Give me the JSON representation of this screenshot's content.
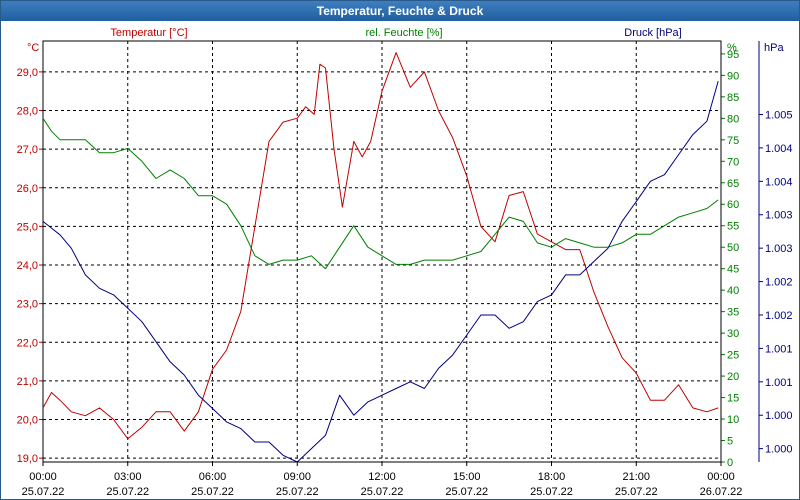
{
  "chart_data": {
    "type": "line",
    "title": "Temperatur, Feuchte & Druck",
    "temp_unit": "°C",
    "hum_unit": "%",
    "press_unit": "hPa",
    "colors": {
      "temp": "#c00000",
      "hum": "#008000",
      "press": "#000080"
    },
    "x_ticks": [
      {
        "time": "00:00",
        "date": "25.07.22"
      },
      {
        "time": "03:00",
        "date": "25.07.22"
      },
      {
        "time": "06:00",
        "date": "25.07.22"
      },
      {
        "time": "09:00",
        "date": "25.07.22"
      },
      {
        "time": "12:00",
        "date": "25.07.22"
      },
      {
        "time": "15:00",
        "date": "25.07.22"
      },
      {
        "time": "18:00",
        "date": "25.07.22"
      },
      {
        "time": "21:00",
        "date": "25.07.22"
      },
      {
        "time": "00:00",
        "date": "26.07.22"
      }
    ],
    "x_range_hours": [
      0,
      24
    ],
    "temp_axis": {
      "min": 18.9,
      "max": 29.8,
      "ticks": [
        "19,0",
        "20,0",
        "21,0",
        "22,0",
        "23,0",
        "24,0",
        "25,0",
        "26,0",
        "27,0",
        "28,0",
        "29,0"
      ]
    },
    "hum_axis": {
      "min": 0,
      "max": 98,
      "ticks": [
        "0",
        "5",
        "10",
        "15",
        "20",
        "25",
        "30",
        "35",
        "40",
        "45",
        "50",
        "55",
        "60",
        "65",
        "70",
        "75",
        "80",
        "85",
        "90",
        "95"
      ]
    },
    "press_axis": {
      "min": 999.8,
      "max": 1006.1,
      "ticks": [
        "1.000",
        "1.000",
        "1.001",
        "1.001",
        "1.002",
        "1.002",
        "1.003",
        "1.003",
        "1.004",
        "1.004",
        "1.005"
      ]
    },
    "series": [
      {
        "name": "Temperatur [°C]",
        "key": "temp",
        "x": [
          0,
          0.3,
          0.6,
          1,
          1.5,
          2,
          2.5,
          3,
          3.5,
          4,
          4.5,
          5,
          5.5,
          6,
          6.5,
          7,
          7.5,
          8,
          8.5,
          9,
          9.3,
          9.6,
          9.8,
          10,
          10.3,
          10.6,
          11,
          11.3,
          11.6,
          12,
          12.5,
          13,
          13.5,
          14,
          14.5,
          15,
          15.5,
          16,
          16.5,
          17,
          17.5,
          18,
          18.5,
          19,
          19.5,
          20,
          20.5,
          21,
          21.5,
          22,
          22.5,
          23,
          23.5,
          24
        ],
        "values": [
          20.3,
          20.7,
          20.5,
          20.2,
          20.1,
          20.3,
          20.0,
          19.5,
          19.8,
          20.2,
          20.2,
          19.7,
          20.2,
          21.3,
          21.8,
          22.8,
          25.0,
          27.2,
          27.7,
          27.8,
          28.1,
          27.9,
          29.2,
          29.1,
          27.0,
          25.5,
          27.2,
          26.8,
          27.2,
          28.5,
          29.5,
          28.6,
          29.0,
          28.0,
          27.3,
          26.3,
          25.0,
          24.6,
          25.8,
          25.9,
          24.8,
          24.6,
          24.4,
          24.4,
          23.3,
          22.4,
          21.6,
          21.2,
          20.5,
          20.5,
          20.9,
          20.3,
          20.2,
          20.3
        ],
        "line_end_hour": 23.9
      },
      {
        "name": "rel. Feuchte [%]",
        "key": "hum",
        "x": [
          0,
          0.3,
          0.6,
          1,
          1.5,
          2,
          2.5,
          3,
          3.5,
          4,
          4.5,
          5,
          5.5,
          6,
          6.5,
          7,
          7.5,
          8,
          8.5,
          9,
          9.5,
          10,
          10.5,
          11,
          11.5,
          12,
          12.5,
          13,
          13.5,
          14,
          14.5,
          15,
          15.5,
          16,
          16.5,
          17,
          17.5,
          18,
          18.5,
          19,
          19.5,
          20,
          20.5,
          21,
          21.5,
          22,
          22.5,
          23,
          23.5,
          24
        ],
        "values": [
          80,
          77,
          75,
          75,
          75,
          72,
          72,
          73,
          70,
          66,
          68,
          66,
          62,
          62,
          60,
          55,
          48,
          46,
          47,
          47,
          48,
          45,
          50,
          55,
          50,
          48,
          46,
          46,
          47,
          47,
          47,
          48,
          49,
          53,
          57,
          56,
          51,
          50,
          52,
          51,
          50,
          50,
          51,
          53,
          53,
          55,
          57,
          58,
          59,
          61
        ],
        "line_end_hour": 23.9
      },
      {
        "name": "Druck [hPa]",
        "key": "press",
        "x": [
          0,
          0.3,
          0.6,
          1,
          1.5,
          2,
          2.5,
          3,
          3.5,
          4,
          4.5,
          5,
          5.5,
          6,
          6.5,
          7,
          7.5,
          8,
          8.5,
          9,
          9.5,
          10,
          10.5,
          11,
          11.5,
          12,
          12.5,
          13,
          13.5,
          14,
          14.5,
          15,
          15.5,
          16,
          16.5,
          17,
          17.5,
          18,
          18.5,
          19,
          19.5,
          20,
          20.5,
          21,
          21.5,
          22,
          22.5,
          23,
          23.5,
          24
        ],
        "values": [
          1003.4,
          1003.3,
          1003.2,
          1003.0,
          1002.6,
          1002.4,
          1002.3,
          1002.1,
          1001.9,
          1001.6,
          1001.3,
          1001.1,
          1000.8,
          1000.6,
          1000.4,
          1000.3,
          1000.1,
          1000.1,
          999.9,
          999.8,
          1000.0,
          1000.2,
          1000.8,
          1000.5,
          1000.7,
          1000.8,
          1000.9,
          1001.0,
          1000.9,
          1001.2,
          1001.4,
          1001.7,
          1002.0,
          1002.0,
          1001.8,
          1001.9,
          1002.2,
          1002.3,
          1002.6,
          1002.6,
          1002.8,
          1003.0,
          1003.4,
          1003.7,
          1004.0,
          1004.1,
          1004.4,
          1004.7,
          1004.9,
          1005.5
        ],
        "line_end_hour": 23.9
      }
    ]
  }
}
